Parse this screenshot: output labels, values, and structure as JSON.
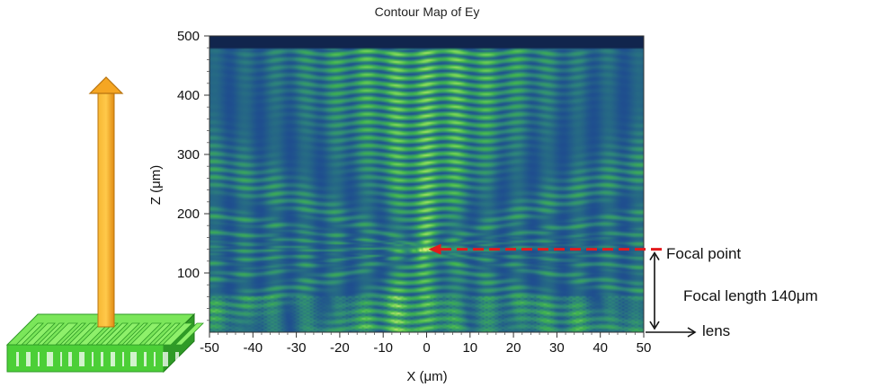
{
  "chart_data": {
    "type": "heatmap",
    "title": "Contour Map of Ey",
    "xlabel": "X (μm)",
    "ylabel": "Z (μm)",
    "xlim": [
      -50,
      50
    ],
    "ylim": [
      0,
      500
    ],
    "x_ticks": [
      "-50",
      "-40",
      "-30",
      "-20",
      "-10",
      "0",
      "10",
      "20",
      "30",
      "40",
      "50"
    ],
    "y_ticks": [
      "100",
      "200",
      "300",
      "400",
      "500"
    ],
    "colormap": [
      "#0d1a3d",
      "#1f4f8f",
      "#2f8a78",
      "#3fb34f",
      "#7ed957",
      "#e8f27a"
    ],
    "focal_point": {
      "x": 0,
      "z": 140
    },
    "annotations": {
      "focal_point_label": "Focal point",
      "focal_length_label": "Focal length 140μm",
      "lens_label": "lens"
    }
  },
  "colors": {
    "focal_arrow": "#e41a1c",
    "propagation_arrow": "#f5a623",
    "lens_green": "#4fd43a",
    "lens_dark": "#2b9a22"
  }
}
